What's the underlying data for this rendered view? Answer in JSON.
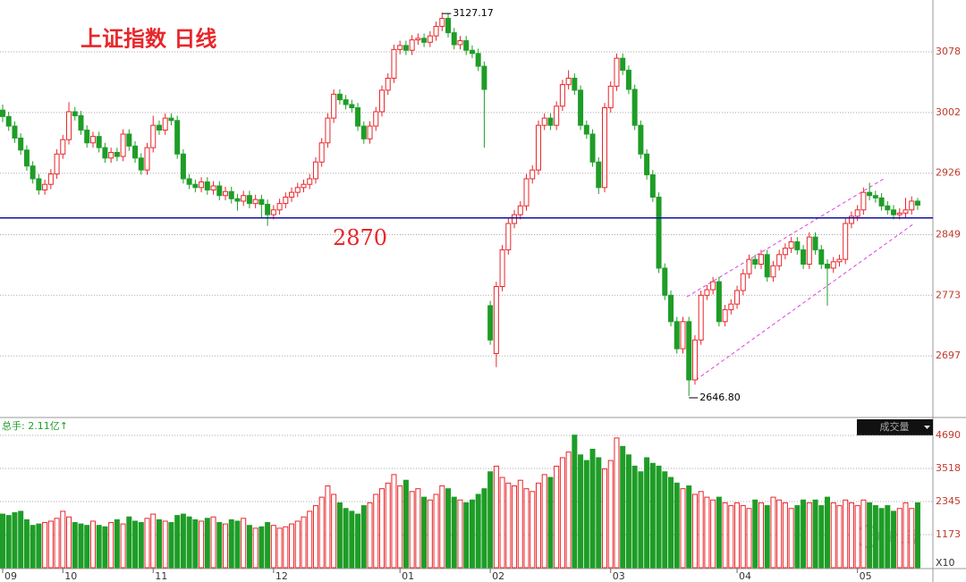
{
  "chart_data": {
    "type": "candlestick",
    "title": "上证指数  日线",
    "up_color": "#e8262b",
    "down_color": "#1e9d27",
    "ylim": [
      2621,
      3143
    ],
    "yticks": [
      2697,
      2773,
      2849,
      2926,
      3002,
      3078
    ],
    "reference_line": 2870,
    "reference_color": "#1010a0",
    "extreme_labels": {
      "high": "3127.17",
      "low": "2646.80"
    },
    "volume_title": "总手: 2.11亿↑",
    "volume_selector": "成交量",
    "volume_unit": "X10",
    "volume_ylim": [
      0,
      5230
    ],
    "volume_yticks": [
      1173,
      2345,
      3518,
      4690
    ],
    "xticks": [
      {
        "value": 0,
        "label": "09"
      },
      {
        "value": 10,
        "label": "10"
      },
      {
        "value": 25,
        "label": "11"
      },
      {
        "value": 45,
        "label": "12"
      },
      {
        "value": 66,
        "label": "01"
      },
      {
        "value": 81,
        "label": "02"
      },
      {
        "value": 101,
        "label": "03"
      },
      {
        "value": 122,
        "label": "04"
      },
      {
        "value": 142,
        "label": "05"
      }
    ],
    "watermark": "姚尧",
    "candles": [
      [
        3005,
        3012,
        2990,
        2997
      ],
      [
        2997,
        3003,
        2979,
        2985
      ],
      [
        2985,
        2991,
        2964,
        2970
      ],
      [
        2970,
        2976,
        2949,
        2955
      ],
      [
        2955,
        2961,
        2929,
        2935
      ],
      [
        2935,
        2941,
        2913,
        2919
      ],
      [
        2919,
        2925,
        2899,
        2905
      ],
      [
        2905,
        2918,
        2899,
        2912
      ],
      [
        2912,
        2931,
        2906,
        2925
      ],
      [
        2925,
        2956,
        2919,
        2950
      ],
      [
        2950,
        2974,
        2944,
        2968
      ],
      [
        2968,
        3015,
        2962,
        3003
      ],
      [
        3003,
        3009,
        2992,
        2998
      ],
      [
        2998,
        3004,
        2974,
        2980
      ],
      [
        2980,
        2986,
        2958,
        2964
      ],
      [
        2964,
        2978,
        2958,
        2972
      ],
      [
        2972,
        2978,
        2952,
        2958
      ],
      [
        2958,
        2964,
        2939,
        2945
      ],
      [
        2945,
        2958,
        2939,
        2952
      ],
      [
        2952,
        2958,
        2941,
        2947
      ],
      [
        2947,
        2981,
        2941,
        2975
      ],
      [
        2975,
        2981,
        2954,
        2960
      ],
      [
        2960,
        2966,
        2939,
        2945
      ],
      [
        2945,
        2951,
        2924,
        2930
      ],
      [
        2930,
        2964,
        2924,
        2958
      ],
      [
        2958,
        2998,
        2952,
        2986
      ],
      [
        2986,
        2992,
        2974,
        2980
      ],
      [
        2980,
        3001,
        2974,
        2995
      ],
      [
        2995,
        3001,
        2986,
        2992
      ],
      [
        2992,
        2998,
        2944,
        2950
      ],
      [
        2950,
        2956,
        2913,
        2919
      ],
      [
        2919,
        2925,
        2906,
        2912
      ],
      [
        2912,
        2918,
        2902,
        2908
      ],
      [
        2908,
        2921,
        2902,
        2915
      ],
      [
        2915,
        2921,
        2899,
        2905
      ],
      [
        2905,
        2916,
        2899,
        2910
      ],
      [
        2910,
        2916,
        2892,
        2898
      ],
      [
        2898,
        2909,
        2892,
        2903
      ],
      [
        2903,
        2909,
        2888,
        2894
      ],
      [
        2894,
        2900,
        2879,
        2891
      ],
      [
        2891,
        2904,
        2885,
        2898
      ],
      [
        2898,
        2904,
        2882,
        2888
      ],
      [
        2888,
        2899,
        2882,
        2893
      ],
      [
        2893,
        2899,
        2870,
        2887
      ],
      [
        2887,
        2893,
        2860,
        2874
      ],
      [
        2874,
        2886,
        2868,
        2880
      ],
      [
        2880,
        2894,
        2874,
        2888
      ],
      [
        2888,
        2902,
        2882,
        2896
      ],
      [
        2896,
        2908,
        2890,
        2902
      ],
      [
        2902,
        2914,
        2896,
        2908
      ],
      [
        2908,
        2918,
        2902,
        2912
      ],
      [
        2912,
        2925,
        2906,
        2919
      ],
      [
        2919,
        2946,
        2913,
        2940
      ],
      [
        2940,
        2970,
        2934,
        2964
      ],
      [
        2964,
        3001,
        2958,
        2995
      ],
      [
        2995,
        3031,
        2989,
        3025
      ],
      [
        3025,
        3031,
        3012,
        3018
      ],
      [
        3018,
        3024,
        3006,
        3012
      ],
      [
        3012,
        3018,
        3002,
        3008
      ],
      [
        3008,
        3014,
        2979,
        2985
      ],
      [
        2985,
        2991,
        2963,
        2969
      ],
      [
        2969,
        2991,
        2963,
        2985
      ],
      [
        2985,
        3009,
        2979,
        3003
      ],
      [
        3003,
        3036,
        2997,
        3030
      ],
      [
        3030,
        3051,
        3024,
        3045
      ],
      [
        3045,
        3087,
        3039,
        3081
      ],
      [
        3081,
        3092,
        3075,
        3086
      ],
      [
        3086,
        3092,
        3074,
        3080
      ],
      [
        3080,
        3099,
        3074,
        3093
      ],
      [
        3093,
        3101,
        3087,
        3095
      ],
      [
        3095,
        3101,
        3084,
        3090
      ],
      [
        3090,
        3104,
        3084,
        3098
      ],
      [
        3098,
        3116,
        3092,
        3110
      ],
      [
        3110,
        3127.17,
        3104,
        3120
      ],
      [
        3120,
        3126,
        3096,
        3102
      ],
      [
        3102,
        3108,
        3081,
        3087
      ],
      [
        3087,
        3098,
        3081,
        3092
      ],
      [
        3092,
        3098,
        3074,
        3080
      ],
      [
        3080,
        3086,
        3070,
        3076
      ],
      [
        3076,
        3082,
        3054,
        3060
      ],
      [
        3060,
        3066,
        2958,
        3031
      ],
      [
        2760,
        2766,
        2711,
        2717
      ],
      [
        2700,
        2790,
        2683,
        2784
      ],
      [
        2784,
        2836,
        2778,
        2830
      ],
      [
        2830,
        2869,
        2824,
        2863
      ],
      [
        2863,
        2880,
        2857,
        2874
      ],
      [
        2874,
        2891,
        2868,
        2885
      ],
      [
        2885,
        2925,
        2879,
        2919
      ],
      [
        2919,
        2936,
        2913,
        2930
      ],
      [
        2930,
        2992,
        2924,
        2986
      ],
      [
        2986,
        3001,
        2980,
        2995
      ],
      [
        2995,
        3001,
        2980,
        2986
      ],
      [
        2986,
        3016,
        2980,
        3010
      ],
      [
        3010,
        3043,
        3004,
        3037
      ],
      [
        3037,
        3055,
        3031,
        3045
      ],
      [
        3045,
        3051,
        3024,
        3030
      ],
      [
        3030,
        3036,
        2980,
        2986
      ],
      [
        2986,
        2992,
        2969,
        2975
      ],
      [
        2975,
        2981,
        2934,
        2940
      ],
      [
        2940,
        2946,
        2900,
        2908
      ],
      [
        2908,
        3014,
        2902,
        3008
      ],
      [
        3008,
        3041,
        3002,
        3035
      ],
      [
        3035,
        3076,
        3029,
        3070
      ],
      [
        3070,
        3076,
        3049,
        3055
      ],
      [
        3055,
        3061,
        3025,
        3031
      ],
      [
        3031,
        3037,
        2980,
        2986
      ],
      [
        2986,
        2992,
        2944,
        2950
      ],
      [
        2950,
        2956,
        2918,
        2924
      ],
      [
        2924,
        2930,
        2890,
        2896
      ],
      [
        2896,
        2902,
        2801,
        2807
      ],
      [
        2807,
        2813,
        2767,
        2773
      ],
      [
        2773,
        2779,
        2734,
        2740
      ],
      [
        2740,
        2746,
        2700,
        2706
      ],
      [
        2706,
        2746,
        2700,
        2740
      ],
      [
        2740,
        2746,
        2646.8,
        2667
      ],
      [
        2667,
        2723,
        2661,
        2717
      ],
      [
        2717,
        2779,
        2711,
        2773
      ],
      [
        2773,
        2786,
        2767,
        2780
      ],
      [
        2780,
        2796,
        2774,
        2790
      ],
      [
        2790,
        2796,
        2734,
        2740
      ],
      [
        2740,
        2761,
        2734,
        2755
      ],
      [
        2755,
        2768,
        2749,
        2762
      ],
      [
        2762,
        2785,
        2756,
        2779
      ],
      [
        2779,
        2806,
        2773,
        2800
      ],
      [
        2800,
        2824,
        2794,
        2818
      ],
      [
        2818,
        2824,
        2806,
        2812
      ],
      [
        2812,
        2830,
        2806,
        2824
      ],
      [
        2824,
        2830,
        2790,
        2796
      ],
      [
        2796,
        2816,
        2790,
        2810
      ],
      [
        2810,
        2830,
        2804,
        2824
      ],
      [
        2824,
        2838,
        2818,
        2832
      ],
      [
        2832,
        2846,
        2826,
        2840
      ],
      [
        2840,
        2846,
        2824,
        2830
      ],
      [
        2830,
        2836,
        2806,
        2812
      ],
      [
        2812,
        2852,
        2806,
        2846
      ],
      [
        2846,
        2852,
        2824,
        2830
      ],
      [
        2830,
        2836,
        2806,
        2812
      ],
      [
        2812,
        2818,
        2760,
        2807
      ],
      [
        2807,
        2821,
        2801,
        2815
      ],
      [
        2815,
        2824,
        2809,
        2818
      ],
      [
        2818,
        2869,
        2812,
        2863
      ],
      [
        2863,
        2878,
        2857,
        2872
      ],
      [
        2872,
        2886,
        2866,
        2880
      ],
      [
        2880,
        2908,
        2874,
        2902
      ],
      [
        2902,
        2914,
        2892,
        2898
      ],
      [
        2898,
        2904,
        2889,
        2895
      ],
      [
        2895,
        2901,
        2879,
        2885
      ],
      [
        2885,
        2891,
        2874,
        2880
      ],
      [
        2880,
        2886,
        2868,
        2874
      ],
      [
        2874,
        2882,
        2868,
        2876
      ],
      [
        2876,
        2895,
        2870,
        2880
      ],
      [
        2880,
        2897,
        2874,
        2891
      ],
      [
        2891,
        2895,
        2880,
        2886
      ]
    ],
    "volumes": [
      1900,
      1850,
      1950,
      2000,
      1700,
      1500,
      1550,
      1600,
      1650,
      1750,
      2000,
      1800,
      1600,
      1550,
      1500,
      1650,
      1500,
      1450,
      1600,
      1700,
      1550,
      1800,
      1650,
      1600,
      1750,
      1900,
      1700,
      1650,
      1600,
      1850,
      1900,
      1800,
      1700,
      1650,
      1750,
      1800,
      1600,
      1550,
      1700,
      1650,
      1750,
      1500,
      1400,
      1450,
      1600,
      1500,
      1400,
      1450,
      1550,
      1650,
      1800,
      2000,
      2200,
      2500,
      2900,
      2600,
      2300,
      2100,
      2000,
      1900,
      2200,
      2300,
      2600,
      2800,
      3000,
      3300,
      2900,
      3100,
      2700,
      2800,
      2500,
      2400,
      2600,
      2900,
      2800,
      2500,
      2400,
      2300,
      2400,
      2600,
      2800,
      3400,
      3600,
      3200,
      3000,
      2900,
      3100,
      2800,
      2700,
      3000,
      3300,
      3200,
      3600,
      3900,
      4100,
      4700,
      4000,
      3800,
      4200,
      3900,
      3500,
      3800,
      4600,
      4300,
      4000,
      3600,
      3400,
      3900,
      3700,
      3600,
      3400,
      3200,
      3000,
      2800,
      2900,
      2600,
      2700,
      2500,
      2400,
      2500,
      2300,
      2200,
      2300,
      2200,
      2100,
      2400,
      2300,
      2200,
      2500,
      2400,
      2300,
      2100,
      2200,
      2400,
      2300,
      2400,
      2200,
      2500,
      2300,
      2200,
      2400,
      2300,
      2200,
      2400,
      2300,
      2200,
      2100,
      2200,
      2000,
      2100,
      2300,
      2100,
      2300
    ]
  }
}
